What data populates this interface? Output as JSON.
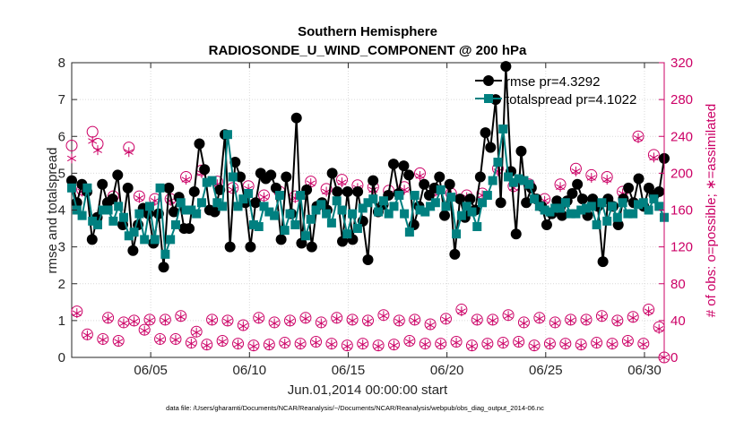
{
  "chart_data": {
    "type": "line",
    "title": "Southern Hemisphere",
    "subtitle": "RADIOSONDE_U_WIND_COMPONENT @ 200 hPa",
    "xlabel": "Jun.01,2014 00:00:00 start",
    "ylabel_left": "rmse and totalspread",
    "ylabel_right": "# of obs: o=possible; ∗=assimilated",
    "xlim": [
      1,
      31
    ],
    "ylim_left": [
      0,
      8
    ],
    "ylim_right": [
      0,
      320
    ],
    "x_ticks": [
      5,
      10,
      15,
      20,
      25,
      30
    ],
    "x_tick_labels": [
      "06/05",
      "06/10",
      "06/15",
      "06/20",
      "06/25",
      "06/30"
    ],
    "y_left_ticks": [
      "0",
      "1",
      "2",
      "3",
      "4",
      "5",
      "6",
      "7",
      "8"
    ],
    "y_right_ticks": [
      "0",
      "40",
      "80",
      "120",
      "160",
      "200",
      "240",
      "280",
      "320"
    ],
    "grid": true,
    "legend_position": "top-right",
    "colors": {
      "rmse": "#000000",
      "totalspread": "#008080",
      "obs": "#cc0066",
      "axis": "#262626"
    },
    "series": [
      {
        "name": "rmse pr=4.3292",
        "axis": "left",
        "values": [
          4.8,
          4.2,
          4.7,
          4.5,
          3.2,
          3.8,
          4.7,
          4.2,
          4.3,
          4.95,
          3.6,
          4.6,
          2.9,
          3.6,
          4.05,
          3.9,
          3.1,
          3.9,
          2.45,
          4.6,
          3.95,
          4.35,
          3.5,
          3.5,
          4.5,
          5.8,
          5.1,
          4.0,
          3.95,
          4.55,
          6.05,
          3.0,
          5.3,
          4.9,
          4.2,
          3.0,
          4.2,
          5.0,
          4.85,
          4.95,
          4.6,
          3.2,
          4.9,
          3.9,
          6.5,
          3.1,
          4.55,
          3.0,
          4.1,
          4.2,
          4.0,
          5.0,
          4.5,
          3.15,
          4.5,
          3.2,
          4.5,
          3.7,
          2.65,
          4.8,
          3.95,
          4.15,
          4.4,
          5.25,
          4.45,
          5.2,
          4.95,
          3.6,
          4.1,
          4.7,
          4.4,
          4.6,
          4.9,
          3.85,
          4.7,
          2.8,
          4.3,
          3.8,
          4.3,
          4.0,
          4.9,
          6.1,
          5.7,
          7.0,
          4.2,
          7.9,
          5.05,
          3.35,
          5.6,
          4.2,
          4.6,
          4.3,
          4.1,
          3.6,
          3.9,
          4.25,
          3.85,
          4.25,
          4.45,
          4.7,
          4.3,
          3.85,
          4.3,
          4.1,
          2.6,
          4.3,
          4.1,
          3.6,
          4.3,
          4.6,
          4.2,
          4.85,
          4.1,
          4.6,
          4.4,
          4.5,
          5.4
        ]
      },
      {
        "name": "totalspread pr=4.1022",
        "axis": "left",
        "values": [
          4.6,
          4.0,
          3.85,
          4.6,
          3.7,
          3.6,
          4.0,
          4.0,
          3.7,
          4.1,
          3.8,
          3.3,
          3.4,
          3.9,
          3.2,
          4.1,
          3.2,
          4.6,
          2.8,
          3.2,
          3.6,
          4.2,
          4.0,
          4.0,
          3.9,
          4.2,
          4.75,
          4.8,
          4.2,
          4.1,
          6.05,
          4.9,
          4.1,
          4.3,
          4.45,
          3.6,
          3.55,
          4.1,
          3.95,
          3.85,
          4.4,
          3.45,
          3.9,
          3.6,
          4.4,
          3.3,
          3.75,
          4.0,
          4.15,
          3.9,
          3.65,
          4.25,
          4.0,
          3.35,
          3.9,
          3.5,
          4.05,
          4.2,
          4.3,
          3.95,
          4.25,
          3.9,
          4.1,
          4.4,
          3.9,
          3.4,
          4.4,
          4.0,
          3.95,
          4.1,
          4.2,
          4.55,
          4.1,
          4.35,
          3.35,
          3.85,
          4.1,
          3.95,
          3.55,
          4.2,
          4.4,
          4.8,
          5.3,
          6.2,
          4.9,
          4.75,
          4.85,
          4.8,
          4.7,
          4.3,
          4.1,
          4.0,
          3.95,
          4.05,
          4.05,
          4.2,
          3.9,
          3.9,
          4.0,
          4.05,
          4.1,
          3.6,
          4.2,
          3.7,
          4.1,
          3.8,
          4.2,
          3.9,
          3.9,
          4.15,
          4.2,
          4.0,
          4.3,
          4.1,
          3.8
        ]
      },
      {
        "name": "possible",
        "axis": "right",
        "values": [
          230,
          50,
          182,
          25,
          245,
          232,
          20,
          43,
          175,
          18,
          38,
          228,
          40,
          175,
          30,
          41,
          172,
          20,
          41,
          172,
          20,
          45,
          196,
          16,
          28,
          203,
          14,
          41,
          191,
          18,
          40,
          184,
          15,
          35,
          186,
          13,
          43,
          176,
          14,
          38,
          180,
          16,
          40,
          175,
          15,
          43,
          191,
          17,
          38,
          183,
          15,
          43,
          193,
          13,
          41,
          187,
          15,
          40,
          185,
          13,
          46,
          181,
          14,
          40,
          185,
          18,
          41,
          200,
          15,
          36,
          182,
          15,
          42,
          178,
          17,
          52,
          176,
          13,
          41,
          178,
          15,
          41,
          205,
          16,
          46,
          186,
          17,
          38,
          188,
          13,
          43,
          172,
          15,
          38,
          188,
          15,
          41,
          205,
          14,
          41,
          198,
          16,
          45,
          196,
          15,
          40,
          180,
          18,
          44,
          240,
          15,
          52,
          220,
          33,
          0
        ]
      },
      {
        "name": "assimilated",
        "axis": "right",
        "values": [
          216,
          48,
          180,
          24,
          235,
          225,
          19,
          42,
          172,
          17,
          37,
          223,
          39,
          173,
          29,
          40,
          170,
          19,
          40,
          170,
          19,
          44,
          193,
          15,
          27,
          200,
          13,
          40,
          188,
          17,
          39,
          182,
          14,
          34,
          183,
          12,
          42,
          174,
          13,
          37,
          178,
          15,
          39,
          173,
          14,
          42,
          189,
          16,
          37,
          180,
          14,
          42,
          190,
          12,
          40,
          184,
          14,
          39,
          182,
          12,
          45,
          178,
          13,
          39,
          182,
          17,
          40,
          197,
          14,
          35,
          180,
          14,
          41,
          176,
          16,
          50,
          174,
          12,
          40,
          176,
          14,
          40,
          202,
          15,
          45,
          184,
          16,
          37,
          185,
          12,
          42,
          170,
          14,
          37,
          185,
          14,
          40,
          202,
          13,
          40,
          195,
          15,
          44,
          193,
          14,
          39,
          178,
          17,
          43,
          238,
          14,
          50,
          217,
          31,
          0
        ]
      }
    ]
  },
  "footer": {
    "data_file": "data file: /Users/gharamti/Documents/NCAR/Reanalysis/~/Documents/NCAR/Reanalysis/webpub/obs_diag_output_2014-06.nc"
  }
}
